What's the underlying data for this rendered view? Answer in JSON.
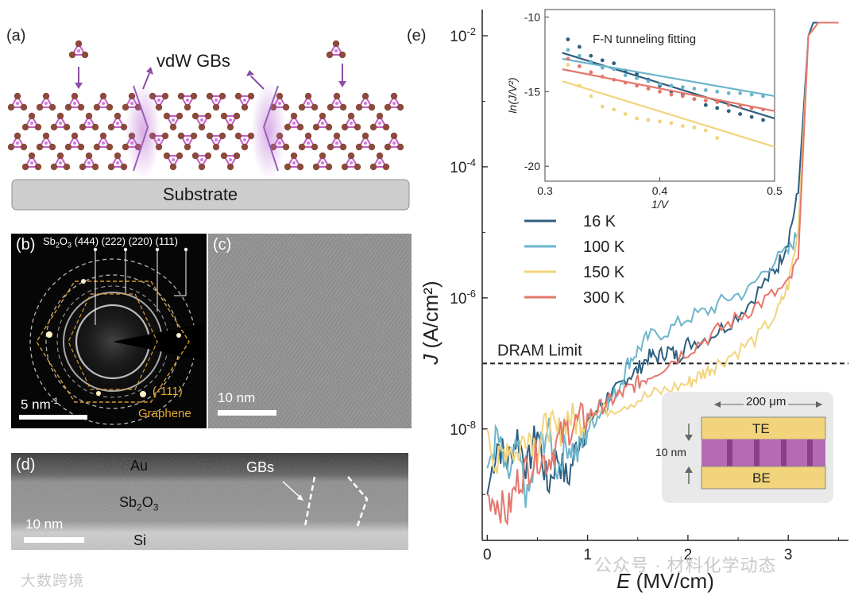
{
  "panels": {
    "a": {
      "label": "(a)",
      "gb_label": "vdW GBs",
      "substrate": "Substrate"
    },
    "b": {
      "label": "(b)",
      "rings_prefix": "Sb",
      "rings_sub2": "2",
      "rings_mid": "O",
      "rings_sub3": "3",
      "rings": " (444) (222) (220) (111)",
      "spot": "(-111)",
      "graphene": "Graphene",
      "scale": "5 nm",
      "scale_sup": "-1"
    },
    "c": {
      "label": "(c)",
      "scale": "10 nm"
    },
    "d": {
      "label": "(d)",
      "au": "Au",
      "sb_a": "Sb",
      "sb_s2": "2",
      "sb_b": "O",
      "sb_s3": "3",
      "gbs": "GBs",
      "si": "Si",
      "scale": "10 nm"
    },
    "e": {
      "label": "(e)",
      "dram": "DRAM Limit",
      "x_label": "E (MV/cm)",
      "y_label": "J (A/cm²)",
      "device_width": "200 μm",
      "device_thickness": "10 nm",
      "te": "TE",
      "be": "BE"
    }
  },
  "chart_data": [
    {
      "type": "line",
      "title": "",
      "xlabel": "E (MV/cm)",
      "ylabel": "J (A/cm2)",
      "xlim": [
        -0.05,
        3.6
      ],
      "ylim_log10": [
        -9.7,
        -1.6
      ],
      "x_ticks": [
        0,
        1,
        2,
        3
      ],
      "y_ticks": [
        "10-8",
        "10-6",
        "10-4",
        "10-2"
      ],
      "dram_limit": 1e-07,
      "legend": [
        {
          "name": "16 K",
          "color": "#2e5f7e"
        },
        {
          "name": "100 K",
          "color": "#6db5cb"
        },
        {
          "name": "150 K",
          "color": "#f2d47c"
        },
        {
          "name": "300 K",
          "color": "#e3776b"
        }
      ],
      "series": [
        {
          "name": "16 K",
          "color": "#2e5f7e",
          "x": [
            0,
            0.1,
            0.2,
            0.3,
            0.4,
            0.5,
            0.6,
            0.7,
            0.8,
            0.9,
            1.0,
            1.1,
            1.2,
            1.3,
            1.4,
            1.5,
            1.6,
            1.7,
            1.8,
            1.9,
            2.0,
            2.2,
            2.4,
            2.6,
            2.8,
            2.9,
            3.0,
            3.1,
            3.2,
            3.25,
            3.35,
            3.5
          ],
          "log10_y": [
            -9.0,
            -8.2,
            -8.5,
            -8.1,
            -8.6,
            -8.0,
            -8.9,
            -8.4,
            -8.8,
            -8.2,
            -7.9,
            -7.7,
            -7.5,
            -7.4,
            -7.2,
            -7.1,
            -6.9,
            -6.9,
            -6.8,
            -6.9,
            -6.7,
            -6.6,
            -6.4,
            -6.1,
            -5.7,
            -5.5,
            -5.1,
            -4.4,
            -2.0,
            -1.8,
            -1.8,
            -1.8
          ]
        },
        {
          "name": "100 K",
          "color": "#6db5cb",
          "x": [
            0,
            0.1,
            0.2,
            0.3,
            0.4,
            0.5,
            0.6,
            0.7,
            0.8,
            0.9,
            1.0,
            1.1,
            1.2,
            1.3,
            1.4,
            1.5,
            1.6,
            1.8,
            2.0,
            2.2,
            2.4,
            2.6,
            2.8,
            3.0,
            3.1,
            3.2,
            3.3,
            3.5
          ],
          "log10_y": [
            -8.6,
            -8.1,
            -8.8,
            -8.3,
            -9.1,
            -8.4,
            -8.0,
            -8.6,
            -8.2,
            -8.4,
            -8.0,
            -7.8,
            -7.6,
            -7.4,
            -7.0,
            -6.8,
            -6.6,
            -6.5,
            -6.3,
            -6.2,
            -6.0,
            -5.9,
            -5.5,
            -5.3,
            -5.0,
            -2.0,
            -1.8,
            -1.8
          ]
        },
        {
          "name": "150 K",
          "color": "#f2d47c",
          "x": [
            0,
            0.1,
            0.2,
            0.3,
            0.4,
            0.5,
            0.6,
            0.7,
            0.8,
            0.9,
            1.0,
            1.2,
            1.4,
            1.6,
            1.8,
            2.0,
            2.1,
            2.2,
            2.3,
            2.5,
            2.7,
            2.9,
            3.0,
            3.1,
            3.2,
            3.3,
            3.5
          ],
          "log10_y": [
            -8.0,
            -8.6,
            -8.2,
            -8.4,
            -8.0,
            -8.3,
            -7.9,
            -8.1,
            -7.8,
            -7.9,
            -7.8,
            -7.7,
            -7.6,
            -7.5,
            -7.4,
            -7.3,
            -7.2,
            -7.1,
            -7.0,
            -6.8,
            -6.6,
            -6.2,
            -5.8,
            -5.0,
            -2.0,
            -1.8,
            -1.8
          ]
        },
        {
          "name": "300 K",
          "color": "#e3776b",
          "x": [
            0,
            0.1,
            0.2,
            0.3,
            0.4,
            0.5,
            0.6,
            0.7,
            0.8,
            0.9,
            1.0,
            1.1,
            1.2,
            1.3,
            1.4,
            1.5,
            1.6,
            1.8,
            2.0,
            2.2,
            2.4,
            2.6,
            2.8,
            3.0,
            3.1,
            3.2,
            3.3,
            3.5
          ],
          "log10_y": [
            -9.0,
            -9.1,
            -9.3,
            -8.8,
            -8.6,
            -8.4,
            -8.5,
            -8.2,
            -8.0,
            -7.9,
            -7.8,
            -7.7,
            -7.6,
            -7.5,
            -7.4,
            -7.3,
            -7.2,
            -7.0,
            -6.8,
            -6.6,
            -6.4,
            -6.2,
            -6.0,
            -5.8,
            -5.4,
            -2.0,
            -1.8,
            -1.8
          ]
        }
      ]
    },
    {
      "type": "scatter",
      "title": "F-N tunneling fitting",
      "xlabel": "1/V",
      "ylabel": "ln(J/V²)",
      "xlim": [
        0.3,
        0.5
      ],
      "ylim": [
        -21,
        -9.5
      ],
      "x_ticks": [
        0.3,
        0.4,
        0.5
      ],
      "y_ticks": [
        -10,
        -15,
        -20
      ],
      "series": [
        {
          "name": "16 K",
          "color": "#2e5f7e",
          "fit": [
            [
              0.315,
              -12.4
            ],
            [
              0.5,
              -16.8
            ]
          ],
          "x": [
            0.32,
            0.33,
            0.34,
            0.35,
            0.36,
            0.37,
            0.38,
            0.39,
            0.4,
            0.41,
            0.42,
            0.43,
            0.44,
            0.45,
            0.46,
            0.47,
            0.48,
            0.49
          ],
          "y": [
            -11.5,
            -12.0,
            -12.6,
            -12.9,
            -13.1,
            -13.6,
            -13.8,
            -14.2,
            -14.6,
            -15.0,
            -15.2,
            -15.5,
            -15.9,
            -16.1,
            -16.3,
            -16.5,
            -16.7,
            -16.9
          ]
        },
        {
          "name": "100 K",
          "color": "#6db5cb",
          "fit": [
            [
              0.315,
              -12.8
            ],
            [
              0.5,
              -15.3
            ]
          ],
          "x": [
            0.32,
            0.33,
            0.34,
            0.35,
            0.36,
            0.37,
            0.38,
            0.39,
            0.4,
            0.41,
            0.42,
            0.43,
            0.44,
            0.45,
            0.46,
            0.47,
            0.48,
            0.49
          ],
          "y": [
            -12.2,
            -12.6,
            -13.0,
            -13.4,
            -13.5,
            -13.9,
            -14.1,
            -14.3,
            -14.5,
            -14.6,
            -14.7,
            -14.8,
            -14.9,
            -15.0,
            -15.1,
            -15.1,
            -15.2,
            -15.3
          ]
        },
        {
          "name": "150 K",
          "color": "#f2d47c",
          "fit": [
            [
              0.315,
              -14.3
            ],
            [
              0.5,
              -18.7
            ]
          ],
          "x": [
            0.32,
            0.33,
            0.34,
            0.35,
            0.36,
            0.37,
            0.38,
            0.39,
            0.4,
            0.41,
            0.42,
            0.43,
            0.44,
            0.45
          ],
          "y": [
            -13.2,
            -14.6,
            -15.3,
            -16.0,
            -16.2,
            -16.5,
            -16.8,
            -16.9,
            -17.0,
            -17.1,
            -17.3,
            -17.4,
            -17.6,
            -18.1
          ]
        },
        {
          "name": "300 K",
          "color": "#e3776b",
          "fit": [
            [
              0.315,
              -13.5
            ],
            [
              0.5,
              -16.3
            ]
          ],
          "x": [
            0.32,
            0.33,
            0.34,
            0.35,
            0.36,
            0.37,
            0.38,
            0.39,
            0.4,
            0.41,
            0.42,
            0.43,
            0.44,
            0.45,
            0.46,
            0.47,
            0.48,
            0.49
          ],
          "y": [
            -12.8,
            -13.3,
            -13.7,
            -14.0,
            -14.2,
            -14.4,
            -14.6,
            -14.8,
            -15.0,
            -15.2,
            -15.3,
            -15.5,
            -15.6,
            -15.7,
            -15.9,
            -16.0,
            -16.1,
            -16.2
          ]
        }
      ]
    }
  ],
  "watermarks": {
    "left": "大数跨境",
    "right": "公众号 · 材料化学动态"
  }
}
